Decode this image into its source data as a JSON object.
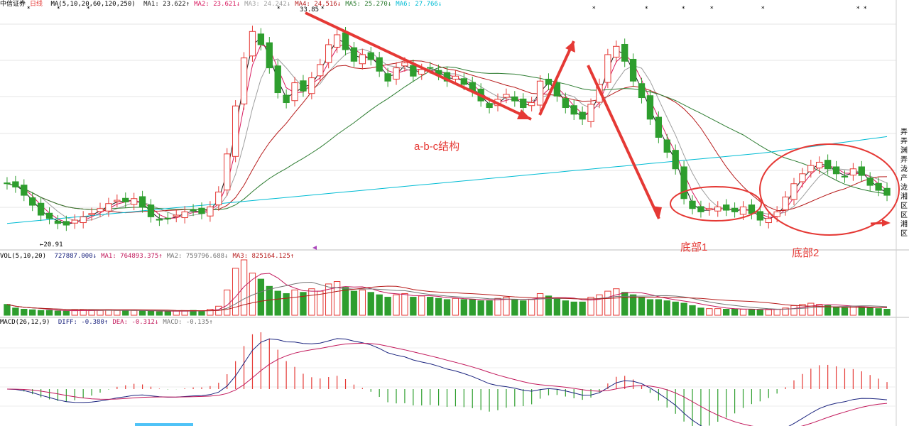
{
  "header_main": {
    "stock": "中信证券",
    "period": "日线",
    "ma_params": "MA(5,10,20,60,120,250)",
    "mas": [
      {
        "label": "MA1: 23.622↑",
        "color": "#1a1a1a"
      },
      {
        "label": "MA2: 23.621↓",
        "color": "#d81b60"
      },
      {
        "label": "MA3: 24.242↓",
        "color": "#9e9e9e"
      },
      {
        "label": "MA4: 24.516↓",
        "color": "#b71c1c"
      },
      {
        "label": "MA5: 25.270↓",
        "color": "#2e7d32"
      },
      {
        "label": "MA6: 27.766↓",
        "color": "#00bcd4"
      }
    ]
  },
  "header_vol": {
    "params": "VOL(5,10,20)",
    "items": [
      {
        "label": "727887.000↓",
        "color": "#1a237e"
      },
      {
        "label": "MA1: 764893.375↑",
        "color": "#c2185b"
      },
      {
        "label": "MA2: 759796.688↓",
        "color": "#757575"
      },
      {
        "label": "MA3: 825164.125↑",
        "color": "#b71c1c"
      }
    ]
  },
  "header_macd": {
    "params": "MACD(26,12,9)",
    "items": [
      {
        "label": "DIFF: -0.380↑",
        "color": "#1a237e"
      },
      {
        "label": "DEA: -0.312↓",
        "color": "#c2185b"
      },
      {
        "label": "MACD: -0.135↑",
        "color": "#757575"
      }
    ]
  },
  "annotations": {
    "abc": "a-b-c结构",
    "bottom1": "底部1",
    "bottom2": "底部2",
    "high_label": "33.85",
    "low_label": "←20.91"
  },
  "right_strip": [
    "弄",
    "弄",
    "渊",
    "弄",
    "泷",
    "产",
    "泷",
    "湘",
    "区",
    "区",
    "湘",
    "区"
  ],
  "colors": {
    "up": "#e53935",
    "down": "#2e9e2e",
    "annot": "#e53935",
    "ma1": "#1a1a1a",
    "ma2": "#d81b60",
    "ma3": "#9e9e9e",
    "ma4": "#b71c1c",
    "ma5": "#2e7d32",
    "ma6": "#00bcd4",
    "diff": "#1a237e",
    "dea": "#c2185b"
  },
  "chart_data": [
    {
      "type": "candlestick",
      "title": "中信证券 日线",
      "ylim": [
        20,
        34.5
      ],
      "price_highlights": {
        "high": 33.85,
        "low": 20.91
      },
      "close_series": [
        24.0,
        23.8,
        23.3,
        22.7,
        22.1,
        21.9,
        21.6,
        21.5,
        21.8,
        22.0,
        22.2,
        22.5,
        22.8,
        23.0,
        22.9,
        23.1,
        22.6,
        22.0,
        21.8,
        21.9,
        22.1,
        22.3,
        22.4,
        22.2,
        22.6,
        23.5,
        25.8,
        28.7,
        31.6,
        33.2,
        32.4,
        31.0,
        29.5,
        28.9,
        30.1,
        29.6,
        30.4,
        31.2,
        32.4,
        33.0,
        32.1,
        31.4,
        31.8,
        31.5,
        30.8,
        30.2,
        31.0,
        31.3,
        30.5,
        30.9,
        31.0,
        30.6,
        30.2,
        30.5,
        30.0,
        29.6,
        29.0,
        28.6,
        29.1,
        29.4,
        29.0,
        28.6,
        28.9,
        30.2,
        30.0,
        29.3,
        28.6,
        28.2,
        27.9,
        28.8,
        30.0,
        31.8,
        32.3,
        31.4,
        30.2,
        29.2,
        27.9,
        26.8,
        25.9,
        24.9,
        23.1,
        22.5,
        22.3,
        22.5,
        22.6,
        22.4,
        22.3,
        22.6,
        22.2,
        21.8,
        21.9,
        22.3,
        23.2,
        24.0,
        24.6,
        25.1,
        25.3,
        24.9,
        24.6,
        24.4,
        24.9,
        24.5,
        23.9,
        23.6,
        23.3
      ],
      "volume_series": [
        18,
        12,
        10,
        9,
        8,
        8,
        7,
        7,
        8,
        9,
        8,
        8,
        9,
        8,
        8,
        8,
        7,
        7,
        6,
        7,
        7,
        7,
        8,
        7,
        10,
        15,
        42,
        78,
        92,
        70,
        60,
        48,
        40,
        36,
        42,
        38,
        44,
        40,
        52,
        56,
        46,
        40,
        42,
        38,
        34,
        30,
        34,
        36,
        30,
        32,
        30,
        28,
        26,
        28,
        26,
        26,
        24,
        24,
        28,
        30,
        26,
        24,
        26,
        36,
        32,
        28,
        24,
        22,
        22,
        30,
        34,
        40,
        44,
        38,
        34,
        30,
        26,
        26,
        24,
        22,
        20,
        16,
        12,
        11,
        11,
        10,
        10,
        10,
        10,
        9,
        9,
        10,
        12,
        16,
        18,
        20,
        18,
        16,
        14,
        13,
        15,
        14,
        12,
        11,
        10
      ],
      "volume_ma": [
        {
          "name": "MA1",
          "values": [
            764893.375
          ]
        }
      ],
      "indicators": {
        "DIFF": -0.38,
        "DEA": -0.312,
        "MACD": -0.135
      },
      "annotation_text": [
        "a-b-c结构",
        "底部1",
        "底部2"
      ]
    }
  ]
}
